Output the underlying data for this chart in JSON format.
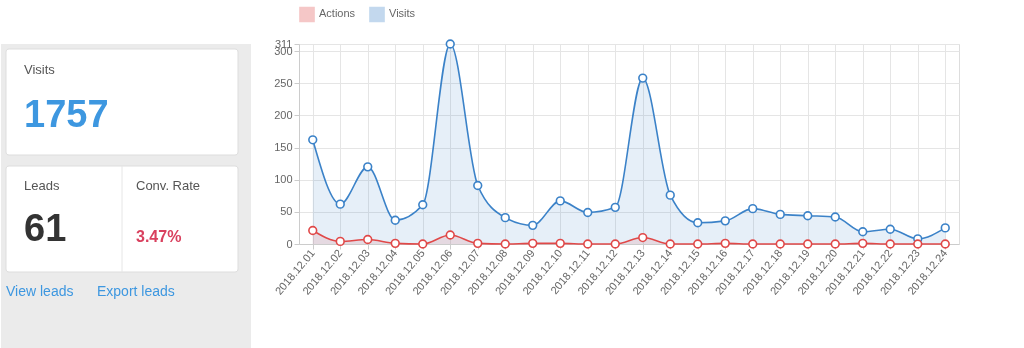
{
  "chart_data": [
    {
      "type": "other",
      "annotations": [
        "Visits",
        "1757",
        "Leads",
        "61",
        "Conv. Rate",
        "3.47%",
        "View leads",
        "Export leads"
      ]
    },
    {
      "type": "area",
      "categories": [
        "2018.12.01",
        "2018.12.02",
        "2018.12.03",
        "2018.12.04",
        "2018.12.05",
        "2018.12.06",
        "2018.12.07",
        "2018.12.08",
        "2018.12.09",
        "2018.12.10",
        "2018.12.11",
        "2018.12.12",
        "2018.12.13",
        "2018.12.14",
        "2018.12.15",
        "2018.12.16",
        "2018.12.17",
        "2018.12.18",
        "2018.12.19",
        "2018.12.20",
        "2018.12.21",
        "2018.12.22",
        "2018.12.23",
        "2018.12.24"
      ],
      "series": [
        {
          "name": "Actions",
          "color": "#e04848",
          "values": [
            21,
            4,
            7,
            1,
            0,
            14,
            1,
            0,
            1,
            1,
            0,
            0,
            10,
            0,
            0,
            1,
            0,
            0,
            0,
            0,
            1,
            0,
            0,
            0
          ]
        },
        {
          "name": "Visits",
          "color": "#3b82c8",
          "values": [
            162,
            62,
            120,
            37,
            61,
            311,
            91,
            41,
            29,
            67,
            49,
            57,
            258,
            76,
            33,
            36,
            55,
            46,
            44,
            42,
            19,
            23,
            8,
            25
          ]
        }
      ],
      "ylim": [
        0,
        311
      ],
      "yticks": [
        0,
        50,
        100,
        150,
        200,
        250,
        300,
        311
      ],
      "grid": true,
      "legend": "top",
      "marker": "circle",
      "line_style": "solid"
    }
  ]
}
